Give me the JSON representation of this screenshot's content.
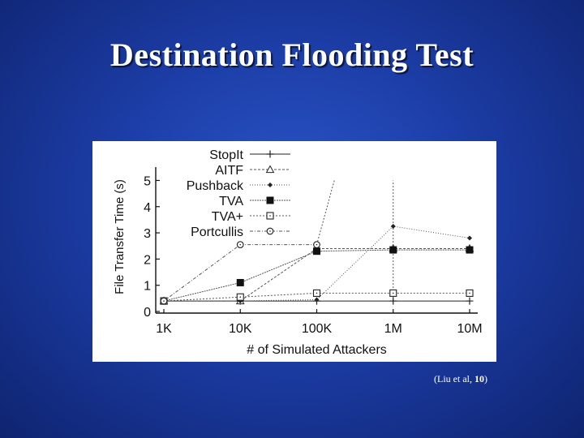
{
  "slide": {
    "title": "Destination Flooding Test",
    "caption_prefix": "(Liu et al, ",
    "caption_bold": "10",
    "caption_suffix": ")"
  },
  "chart_data": {
    "type": "line",
    "title": "",
    "xlabel": "# of Simulated Attackers",
    "ylabel": "File Transfer Time (s)",
    "categories": [
      "1K",
      "10K",
      "100K",
      "1M",
      "10M"
    ],
    "ylim": [
      0,
      5.2
    ],
    "yticks": [
      "0",
      "1",
      "2",
      "3",
      "4",
      "5"
    ],
    "grid": false,
    "legend_position": "top-left",
    "series": [
      {
        "name": "StopIt",
        "marker": "plus",
        "dash": "none",
        "values": [
          0.4,
          0.4,
          0.4,
          0.4,
          0.4
        ]
      },
      {
        "name": "AITF",
        "marker": "triangle",
        "dash": "3,2",
        "values": [
          0.4,
          0.4,
          2.4,
          2.4,
          2.4
        ]
      },
      {
        "name": "Pushback",
        "marker": "diamond",
        "dash": "1,2",
        "values": [
          0.4,
          0.4,
          0.45,
          3.25,
          2.8
        ]
      },
      {
        "name": "TVA",
        "marker": "square-filled",
        "dash": "2,1",
        "values": [
          0.4,
          1.1,
          2.3,
          2.35,
          2.35
        ]
      },
      {
        "name": "TVA+",
        "marker": "square-open",
        "dash": "2,2",
        "values": [
          0.4,
          0.55,
          0.7,
          0.7,
          0.7
        ]
      },
      {
        "name": "Portcullis",
        "marker": "circle-open",
        "dash": "4,2,1,2",
        "values": [
          0.4,
          2.55,
          2.55,
          null,
          null
        ]
      }
    ],
    "extra_lines": [
      {
        "name": "Portcullis rising",
        "from": [
          2,
          2.55
        ],
        "to": [
          2.23,
          5.0
        ]
      },
      {
        "name": "Pushback vertical",
        "from": [
          3,
          0.4
        ],
        "to": [
          3,
          5.0
        ]
      }
    ]
  }
}
